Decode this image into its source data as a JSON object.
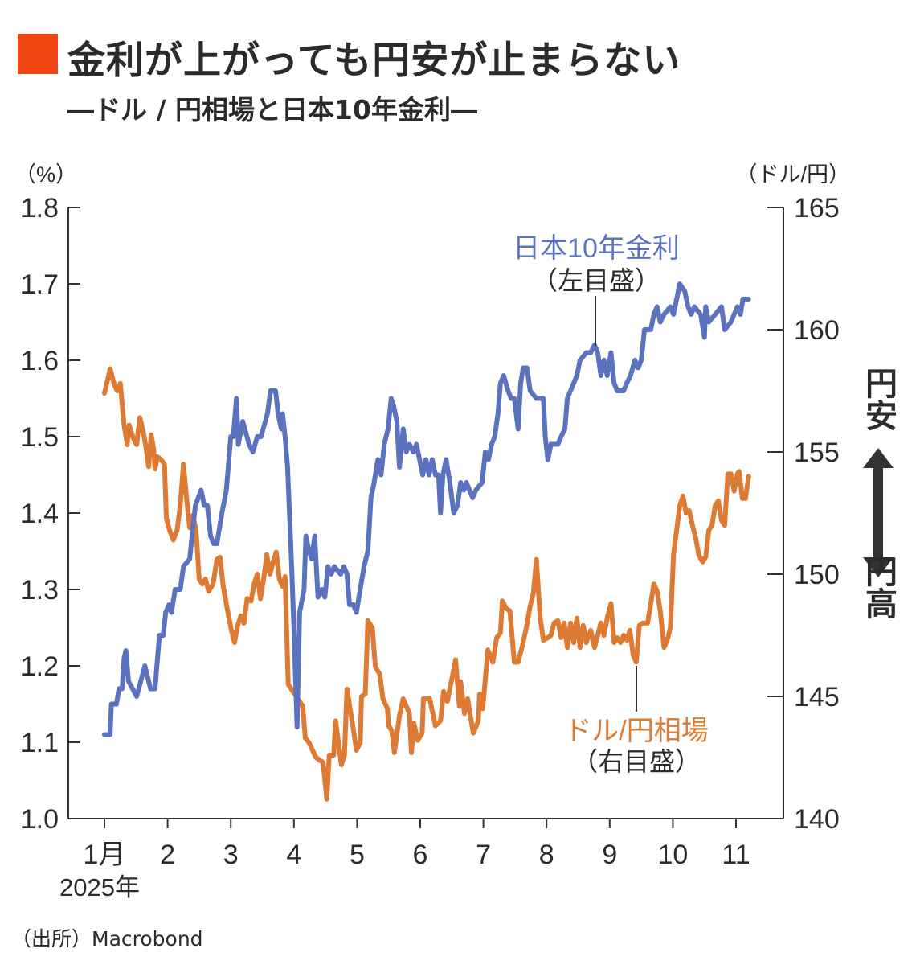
{
  "header": {
    "title": "金利が上がっても円安が止まらない",
    "subtitle": "―ドル / 円相場と日本10年金利―"
  },
  "source": "（出所）Macrobond",
  "colors": {
    "accent": "#f24713",
    "yield": "#5b73bf",
    "usdjpy": "#dd7a33",
    "text": "#2b2b2b"
  },
  "chart_data": {
    "type": "line",
    "title": "ドル / 円相場と日本10年金利",
    "left_axis": {
      "unit_label": "（%）",
      "ylim": [
        1.0,
        1.8
      ],
      "ticks": [
        "1.0",
        "1.1",
        "1.2",
        "1.3",
        "1.4",
        "1.5",
        "1.6",
        "1.7",
        "1.8"
      ]
    },
    "right_axis": {
      "unit_label": "（ドル/円）",
      "ylim": [
        140,
        165
      ],
      "ticks": [
        "140",
        "145",
        "150",
        "155",
        "160",
        "165"
      ]
    },
    "x_axis": {
      "ticks": [
        "1月",
        "2",
        "3",
        "4",
        "5",
        "6",
        "7",
        "8",
        "9",
        "10",
        "11"
      ],
      "year_label": "2025年",
      "xlim": [
        0.45,
        12.0
      ]
    },
    "annotations": {
      "yield_label": "日本10年金利",
      "yield_scale": "（左目盛）",
      "usdjpy_label": "ドル/円相場",
      "usdjpy_scale": "（右目盛）",
      "weak_yen": "円安",
      "strong_yen": "円高"
    },
    "series": [
      {
        "name": "日本10年金利",
        "axis": "left",
        "x": [
          1.0,
          1.09,
          1.11,
          1.19,
          1.23,
          1.28,
          1.31,
          1.34,
          1.38,
          1.51,
          1.64,
          1.73,
          1.8,
          1.87,
          1.93,
          1.97,
          2.02,
          2.06,
          2.12,
          2.2,
          2.25,
          2.35,
          2.4,
          2.44,
          2.53,
          2.58,
          2.63,
          2.68,
          2.73,
          2.78,
          2.86,
          2.93,
          3.0,
          3.04,
          3.09,
          3.12,
          3.19,
          3.29,
          3.35,
          3.42,
          3.48,
          3.58,
          3.63,
          3.71,
          3.75,
          3.8,
          3.82,
          3.86,
          3.9,
          3.95,
          4.0,
          4.05,
          4.09,
          4.16,
          4.19,
          4.24,
          4.28,
          4.33,
          4.38,
          4.44,
          4.49,
          4.54,
          4.59,
          4.64,
          4.74,
          4.79,
          4.84,
          4.88,
          4.94,
          4.99,
          5.05,
          5.11,
          5.17,
          5.22,
          5.27,
          5.33,
          5.38,
          5.43,
          5.49,
          5.54,
          5.58,
          5.63,
          5.67,
          5.73,
          5.78,
          5.83,
          5.89,
          5.94,
          5.99,
          6.04,
          6.09,
          6.14,
          6.19,
          6.24,
          6.29,
          6.32,
          6.36,
          6.41,
          6.47,
          6.53,
          6.59,
          6.64,
          6.69,
          6.73,
          6.83,
          6.88,
          6.98,
          7.03,
          7.08,
          7.13,
          7.18,
          7.23,
          7.27,
          7.32,
          7.39,
          7.44,
          7.49,
          7.55,
          7.59,
          7.63,
          7.69,
          7.74,
          7.84,
          7.9,
          7.95,
          7.98,
          8.02,
          8.07,
          8.18,
          8.23,
          8.29,
          8.33,
          8.43,
          8.48,
          8.53,
          8.63,
          8.7,
          8.76,
          8.81,
          8.86,
          8.91,
          8.96,
          9.02,
          9.07,
          9.12,
          9.22,
          9.27,
          9.33,
          9.4,
          9.45,
          9.5,
          9.55,
          9.6,
          9.65,
          9.7,
          9.75,
          9.8,
          9.86,
          9.96,
          10.01,
          10.06,
          10.11,
          10.19,
          10.24,
          10.29,
          10.34,
          10.44,
          10.5,
          10.52,
          10.57,
          10.67,
          10.77,
          10.82,
          10.92,
          11.02,
          11.07,
          11.11,
          11.2
        ],
        "values": [
          1.11,
          1.11,
          1.15,
          1.15,
          1.17,
          1.17,
          1.21,
          1.22,
          1.18,
          1.16,
          1.2,
          1.17,
          1.17,
          1.24,
          1.24,
          1.27,
          1.28,
          1.27,
          1.3,
          1.3,
          1.33,
          1.34,
          1.38,
          1.41,
          1.43,
          1.41,
          1.41,
          1.37,
          1.36,
          1.36,
          1.4,
          1.43,
          1.5,
          1.5,
          1.55,
          1.49,
          1.52,
          1.49,
          1.48,
          1.5,
          1.5,
          1.53,
          1.56,
          1.56,
          1.53,
          1.51,
          1.53,
          1.5,
          1.46,
          1.36,
          1.25,
          1.12,
          1.27,
          1.3,
          1.37,
          1.35,
          1.34,
          1.37,
          1.29,
          1.3,
          1.29,
          1.33,
          1.32,
          1.33,
          1.32,
          1.33,
          1.32,
          1.28,
          1.28,
          1.27,
          1.3,
          1.33,
          1.35,
          1.42,
          1.44,
          1.47,
          1.45,
          1.49,
          1.51,
          1.55,
          1.54,
          1.52,
          1.46,
          1.51,
          1.48,
          1.49,
          1.48,
          1.49,
          1.47,
          1.45,
          1.47,
          1.45,
          1.47,
          1.45,
          1.45,
          1.4,
          1.45,
          1.47,
          1.44,
          1.4,
          1.41,
          1.44,
          1.43,
          1.44,
          1.42,
          1.43,
          1.44,
          1.48,
          1.47,
          1.49,
          1.5,
          1.53,
          1.57,
          1.58,
          1.56,
          1.55,
          1.55,
          1.51,
          1.57,
          1.59,
          1.59,
          1.56,
          1.55,
          1.55,
          1.55,
          1.5,
          1.47,
          1.49,
          1.49,
          1.5,
          1.51,
          1.55,
          1.57,
          1.58,
          1.6,
          1.61,
          1.61,
          1.62,
          1.61,
          1.58,
          1.6,
          1.58,
          1.61,
          1.57,
          1.56,
          1.56,
          1.57,
          1.58,
          1.6,
          1.59,
          1.6,
          1.64,
          1.64,
          1.64,
          1.66,
          1.67,
          1.65,
          1.66,
          1.67,
          1.66,
          1.68,
          1.7,
          1.69,
          1.67,
          1.66,
          1.67,
          1.66,
          1.63,
          1.67,
          1.65,
          1.66,
          1.67,
          1.64,
          1.65,
          1.67,
          1.66,
          1.68,
          1.68
        ]
      },
      {
        "name": "ドル/円相場",
        "axis": "right",
        "x": [
          1.0,
          1.09,
          1.15,
          1.2,
          1.25,
          1.31,
          1.36,
          1.39,
          1.45,
          1.51,
          1.56,
          1.61,
          1.65,
          1.7,
          1.74,
          1.78,
          1.8,
          1.84,
          1.89,
          1.95,
          1.98,
          2.03,
          2.09,
          2.15,
          2.2,
          2.25,
          2.3,
          2.35,
          2.4,
          2.45,
          2.5,
          2.55,
          2.6,
          2.65,
          2.72,
          2.78,
          2.83,
          2.88,
          2.95,
          3.01,
          3.06,
          3.11,
          3.16,
          3.21,
          3.26,
          3.32,
          3.37,
          3.42,
          3.47,
          3.52,
          3.57,
          3.62,
          3.67,
          3.72,
          3.77,
          3.82,
          3.86,
          3.91,
          4.14,
          4.18,
          4.24,
          4.35,
          4.46,
          4.52,
          4.56,
          4.63,
          4.66,
          4.75,
          4.8,
          4.84,
          4.92,
          4.99,
          5.05,
          5.07,
          5.13,
          5.17,
          5.24,
          5.29,
          5.36,
          5.41,
          5.48,
          5.5,
          5.55,
          5.59,
          5.67,
          5.73,
          5.83,
          5.86,
          5.9,
          5.96,
          6.03,
          6.05,
          6.15,
          6.24,
          6.32,
          6.37,
          6.43,
          6.56,
          6.62,
          6.64,
          6.7,
          6.75,
          6.84,
          6.92,
          6.94,
          6.99,
          7.07,
          7.15,
          7.21,
          7.27,
          7.3,
          7.36,
          7.42,
          7.49,
          7.55,
          7.62,
          7.68,
          7.74,
          7.79,
          7.84,
          7.9,
          7.95,
          8.02,
          8.07,
          8.12,
          8.18,
          8.23,
          8.28,
          8.33,
          8.38,
          8.43,
          8.48,
          8.53,
          8.58,
          8.63,
          8.7,
          8.76,
          8.81,
          8.86,
          8.91,
          8.96,
          9.02,
          9.07,
          9.12,
          9.17,
          9.22,
          9.27,
          9.32,
          9.37,
          9.42,
          9.47,
          9.52,
          9.6,
          9.65,
          9.7,
          9.75,
          9.8,
          9.86,
          9.91,
          9.96,
          10.01,
          10.06,
          10.11,
          10.16,
          10.21,
          10.26,
          10.31,
          10.36,
          10.41,
          10.47,
          10.52,
          10.57,
          10.62,
          10.67,
          10.72,
          10.77,
          10.82,
          10.87,
          10.92,
          10.97,
          11.02,
          11.05,
          11.1,
          11.15,
          11.2
        ],
        "values": [
          157.4,
          158.4,
          157.8,
          157.5,
          157.8,
          156.1,
          155.3,
          156.1,
          155.6,
          155.3,
          156.4,
          155.9,
          155.3,
          154.4,
          155.7,
          155.1,
          154.3,
          154.8,
          154.7,
          154.5,
          152.3,
          151.8,
          151.4,
          151.8,
          152.8,
          154.5,
          153.1,
          151.9,
          152.4,
          151.8,
          149.8,
          149.6,
          149.8,
          149.3,
          149.6,
          150.6,
          150.7,
          149.5,
          148.5,
          147.7,
          147.2,
          147.9,
          148.3,
          148.0,
          149.0,
          148.9,
          149.6,
          150.0,
          149.0,
          149.8,
          150.8,
          150.0,
          150.5,
          150.9,
          149.8,
          149.5,
          149.9,
          145.5,
          144.6,
          143.3,
          143.1,
          142.5,
          142.3,
          140.8,
          142.6,
          142.6,
          144.0,
          142.2,
          142.6,
          145.3,
          144.0,
          142.8,
          143.1,
          145.0,
          145.1,
          148.1,
          147.8,
          146.2,
          145.9,
          144.9,
          144.5,
          143.8,
          143.6,
          142.7,
          144.2,
          144.9,
          144.3,
          142.7,
          143.9,
          143.2,
          143.5,
          144.9,
          144.9,
          143.8,
          144.0,
          145.2,
          144.8,
          146.5,
          144.6,
          145.6,
          144.3,
          144.9,
          143.5,
          144.0,
          145.1,
          144.5,
          146.9,
          146.4,
          147.4,
          147.6,
          148.9,
          148.6,
          148.5,
          146.4,
          146.4,
          147.1,
          147.8,
          148.7,
          149.2,
          150.6,
          148.2,
          147.3,
          147.4,
          147.5,
          148.0,
          148.1,
          147.4,
          148.0,
          147.0,
          148.0,
          147.2,
          148.2,
          147.0,
          147.9,
          147.2,
          147.7,
          147.0,
          147.5,
          148.0,
          147.5,
          148.2,
          148.8,
          147.2,
          147.4,
          147.2,
          147.5,
          147.3,
          147.7,
          146.7,
          146.4,
          147.9,
          148.0,
          148.0,
          148.8,
          149.6,
          149.3,
          148.5,
          147.0,
          147.3,
          147.8,
          150.8,
          151.8,
          152.8,
          153.2,
          152.5,
          152.6,
          152.0,
          151.5,
          150.8,
          150.5,
          150.7,
          151.8,
          152.0,
          152.8,
          153.0,
          152.2,
          152.0,
          154.1,
          154.1,
          153.4,
          154.1,
          154.2,
          153.1,
          153.1,
          154.0
        ]
      }
    ]
  }
}
